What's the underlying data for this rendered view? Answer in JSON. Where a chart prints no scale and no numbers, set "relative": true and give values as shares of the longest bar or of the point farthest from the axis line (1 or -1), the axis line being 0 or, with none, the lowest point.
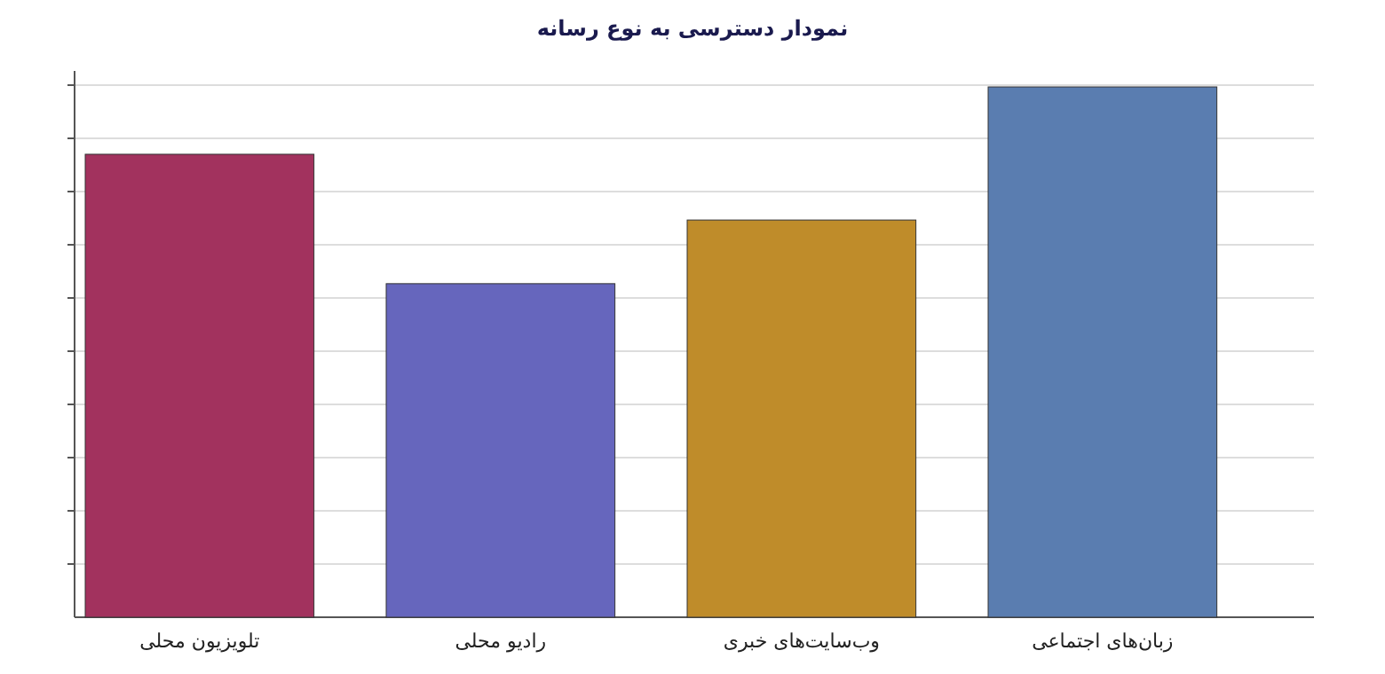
{
  "chart_data": {
    "type": "bar",
    "title": "نمودار دسترسی به نوع رسانه",
    "relative": true,
    "grid": "y",
    "categories": [
      "تلویزیون محلی",
      "رادیو محلی",
      "وب‌سایت‌های خبری",
      "زبان‌های اجتماعی"
    ],
    "values": [
      0.873,
      0.629,
      0.749,
      1.0
    ],
    "colors": [
      "#a2325e",
      "#6666bd",
      "#bf8c2a",
      "#5a7db0"
    ]
  }
}
